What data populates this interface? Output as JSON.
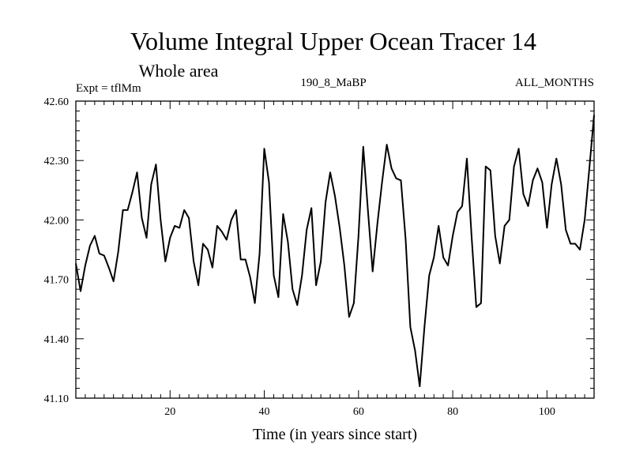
{
  "chart_data": {
    "type": "line",
    "title": "Volume Integral Upper Ocean Tracer 14",
    "subtitle": "Whole area",
    "experiment_label": "Expt = tflMm",
    "run_label": "190_8_MaBP",
    "months_label": "ALL_MONTHS",
    "xlabel": "Time (in years since start)",
    "ylabel": "",
    "xlim": [
      0,
      110
    ],
    "ylim": [
      41.1,
      42.6
    ],
    "x_ticks": [
      20,
      40,
      60,
      80,
      100
    ],
    "y_ticks": [
      41.1,
      41.4,
      41.7,
      42.0,
      42.3,
      42.6
    ],
    "y_tick_labels": [
      "41.10",
      "41.40",
      "41.70",
      "42.00",
      "42.30",
      "42.60"
    ],
    "grid": false,
    "series": [
      {
        "name": "Tracer 14",
        "color": "#000000",
        "x": [
          0,
          1,
          2,
          3,
          4,
          5,
          6,
          7,
          8,
          9,
          10,
          11,
          12,
          13,
          14,
          15,
          16,
          17,
          18,
          19,
          20,
          21,
          22,
          23,
          24,
          25,
          26,
          27,
          28,
          29,
          30,
          31,
          32,
          33,
          34,
          35,
          36,
          37,
          38,
          39,
          40,
          41,
          42,
          43,
          44,
          45,
          46,
          47,
          48,
          49,
          50,
          51,
          52,
          53,
          54,
          55,
          56,
          57,
          58,
          59,
          60,
          61,
          62,
          63,
          64,
          65,
          66,
          67,
          68,
          69,
          70,
          71,
          72,
          73,
          74,
          75,
          76,
          77,
          78,
          79,
          80,
          81,
          82,
          83,
          84,
          85,
          86,
          87,
          88,
          89,
          90,
          91,
          92,
          93,
          94,
          95,
          96,
          97,
          98,
          99,
          100,
          101,
          102,
          103,
          104,
          105,
          106,
          107,
          108,
          109,
          110
        ],
        "y": [
          41.78,
          41.64,
          41.77,
          41.87,
          41.92,
          41.83,
          41.82,
          41.76,
          41.69,
          41.84,
          42.05,
          42.05,
          42.14,
          42.24,
          42.01,
          41.91,
          42.18,
          42.28,
          42.0,
          41.79,
          41.91,
          41.97,
          41.96,
          42.05,
          42.01,
          41.79,
          41.67,
          41.88,
          41.85,
          41.76,
          41.97,
          41.94,
          41.9,
          42.0,
          42.05,
          41.8,
          41.8,
          41.71,
          41.58,
          41.83,
          42.36,
          42.19,
          41.72,
          41.61,
          42.03,
          41.89,
          41.65,
          41.57,
          41.72,
          41.95,
          42.06,
          41.67,
          41.79,
          42.09,
          42.24,
          42.12,
          41.96,
          41.77,
          41.51,
          41.58,
          41.92,
          42.37,
          42.05,
          41.74,
          41.98,
          42.19,
          42.38,
          42.26,
          42.21,
          42.2,
          41.9,
          41.46,
          41.34,
          41.16,
          41.46,
          41.72,
          41.81,
          41.97,
          41.81,
          41.77,
          41.92,
          42.04,
          42.07,
          42.31,
          41.92,
          41.56,
          41.58,
          42.27,
          42.25,
          41.92,
          41.78,
          41.97,
          42.0,
          42.27,
          42.36,
          42.13,
          42.07,
          42.2,
          42.26,
          42.19,
          41.96,
          42.18,
          42.31,
          42.18,
          41.95,
          41.88,
          41.88,
          41.85,
          42.0,
          42.26,
          42.53
        ]
      }
    ]
  }
}
